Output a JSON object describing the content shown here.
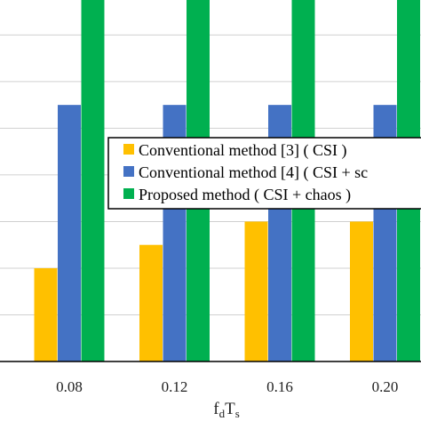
{
  "chart_data": {
    "type": "bar",
    "title": "",
    "xlabel": "f",
    "xlabel_sub_1": "d",
    "xlabel_mid": "T",
    "xlabel_sub_2": "s",
    "ylabel": "",
    "categories": [
      "0.08",
      "0.12",
      "0.16",
      "0.20"
    ],
    "series": [
      {
        "name": "Conventional method [3] ( CSI )",
        "color": "#FFC000",
        "values": [
          2,
          2.5,
          3,
          3
        ]
      },
      {
        "name": "Conventional method [4] ( CSI + sc",
        "color": "#4472C4",
        "values": [
          5.5,
          5.5,
          5.5,
          5.5
        ]
      },
      {
        "name": "Proposed method ( CSI + chaos )",
        "color": "#00B050",
        "values": [
          8,
          8,
          8,
          8
        ]
      }
    ],
    "ylim": [
      0,
      7.75
    ],
    "grid": true,
    "legend_position": "center-right"
  }
}
